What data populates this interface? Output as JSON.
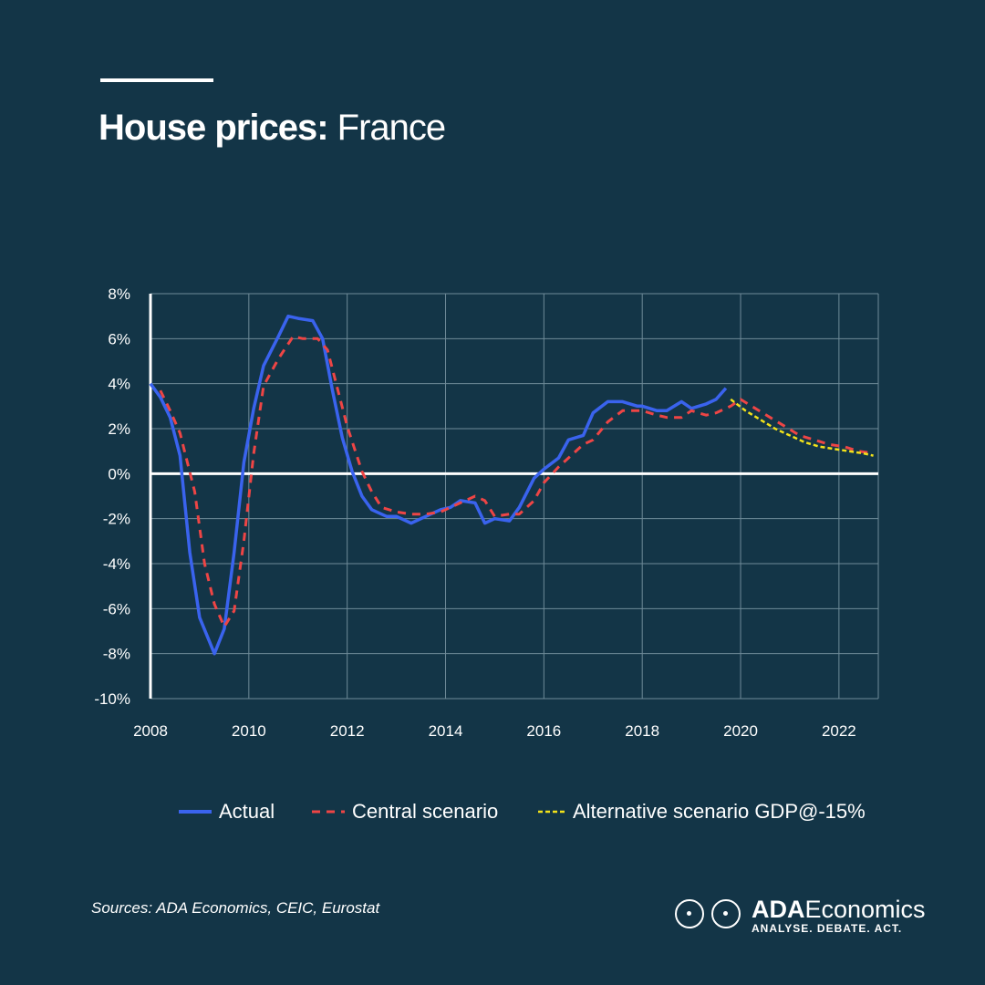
{
  "header": {
    "title_bold": "House prices:",
    "title_light": "France"
  },
  "chart_data": {
    "type": "line",
    "x_ticks": [
      "2008",
      "2010",
      "2012",
      "2014",
      "2016",
      "2018",
      "2020",
      "2022"
    ],
    "y_ticks": [
      "8%",
      "6%",
      "4%",
      "2%",
      "0%",
      "-2%",
      "-4%",
      "-6%",
      "-8%",
      "-10%"
    ],
    "xlim": [
      2008,
      2022.8
    ],
    "ylim": [
      -10,
      8
    ],
    "grid": true,
    "legend_position": "bottom",
    "series": [
      {
        "name": "Actual",
        "color": "#3a63ee",
        "style": "solid",
        "x": [
          2008.0,
          2008.2,
          2008.4,
          2008.6,
          2008.8,
          2009.0,
          2009.3,
          2009.5,
          2009.7,
          2009.9,
          2010.1,
          2010.3,
          2010.6,
          2010.8,
          2011.0,
          2011.3,
          2011.5,
          2011.7,
          2011.9,
          2012.1,
          2012.3,
          2012.5,
          2012.6,
          2012.8,
          2013.0,
          2013.3,
          2013.6,
          2013.9,
          2014.1,
          2014.3,
          2014.6,
          2014.8,
          2015.0,
          2015.3,
          2015.5,
          2015.8,
          2016.0,
          2016.3,
          2016.5,
          2016.8,
          2017.0,
          2017.3,
          2017.6,
          2017.9,
          2018.0,
          2018.3,
          2018.5,
          2018.8,
          2019.0,
          2019.3,
          2019.5,
          2019.7
        ],
        "y": [
          4.0,
          3.4,
          2.5,
          0.8,
          -3.5,
          -6.4,
          -8.0,
          -6.9,
          -3.5,
          0.5,
          2.9,
          4.8,
          6.1,
          7.0,
          6.9,
          6.8,
          6.0,
          3.7,
          1.6,
          0.1,
          -1.0,
          -1.6,
          -1.7,
          -1.9,
          -1.9,
          -2.2,
          -1.9,
          -1.6,
          -1.5,
          -1.2,
          -1.3,
          -2.2,
          -2.0,
          -2.1,
          -1.5,
          -0.2,
          0.2,
          0.7,
          1.5,
          1.7,
          2.7,
          3.2,
          3.2,
          3.0,
          3.0,
          2.8,
          2.8,
          3.2,
          2.9,
          3.1,
          3.3,
          3.8
        ]
      },
      {
        "name": "Central scenario",
        "color": "#ee4545",
        "style": "dashed",
        "x": [
          2008.2,
          2008.4,
          2008.6,
          2008.9,
          2009.1,
          2009.3,
          2009.5,
          2009.7,
          2009.9,
          2010.1,
          2010.3,
          2010.6,
          2010.9,
          2011.1,
          2011.4,
          2011.6,
          2011.8,
          2012.0,
          2012.3,
          2012.5,
          2012.7,
          2013.0,
          2013.3,
          2013.6,
          2013.9,
          2014.1,
          2014.3,
          2014.6,
          2014.8,
          2015.0,
          2015.3,
          2015.5,
          2015.8,
          2016.0,
          2016.3,
          2016.5,
          2016.8,
          2017.0,
          2017.3,
          2017.6,
          2017.9,
          2018.0,
          2018.3,
          2018.5,
          2018.8,
          2019.0,
          2019.3,
          2019.5,
          2019.8,
          2020.0,
          2020.3,
          2020.6,
          2020.9,
          2021.2,
          2021.5,
          2021.8,
          2022.1,
          2022.4,
          2022.7
        ],
        "y": [
          3.7,
          2.8,
          1.8,
          -0.8,
          -4.0,
          -5.8,
          -6.8,
          -6.1,
          -3.0,
          0.9,
          3.9,
          5.1,
          6.1,
          6.0,
          6.0,
          5.5,
          3.8,
          2.1,
          0.1,
          -0.8,
          -1.5,
          -1.7,
          -1.8,
          -1.8,
          -1.7,
          -1.5,
          -1.3,
          -1.0,
          -1.2,
          -1.9,
          -1.8,
          -1.8,
          -1.2,
          -0.4,
          0.3,
          0.7,
          1.3,
          1.5,
          2.3,
          2.8,
          2.8,
          2.8,
          2.6,
          2.5,
          2.5,
          2.8,
          2.6,
          2.7,
          3.0,
          3.3,
          2.9,
          2.5,
          2.1,
          1.7,
          1.5,
          1.3,
          1.2,
          1.0,
          0.9
        ]
      },
      {
        "name": "Alternative scenario GDP@-15%",
        "color": "#f2e21a",
        "style": "dashed",
        "x": [
          2019.8,
          2020.1,
          2020.4,
          2020.7,
          2021.0,
          2021.3,
          2021.6,
          2021.9,
          2022.2,
          2022.5,
          2022.7
        ],
        "y": [
          3.3,
          2.8,
          2.4,
          2.0,
          1.7,
          1.4,
          1.2,
          1.1,
          1.0,
          0.9,
          0.8
        ]
      }
    ]
  },
  "footer": {
    "sources": "Sources: ADA Economics, CEIC, Eurostat",
    "logo_name_bold": "ADA",
    "logo_name_rest": "Economics",
    "logo_tagline": "ANALYSE. DEBATE. ACT."
  }
}
